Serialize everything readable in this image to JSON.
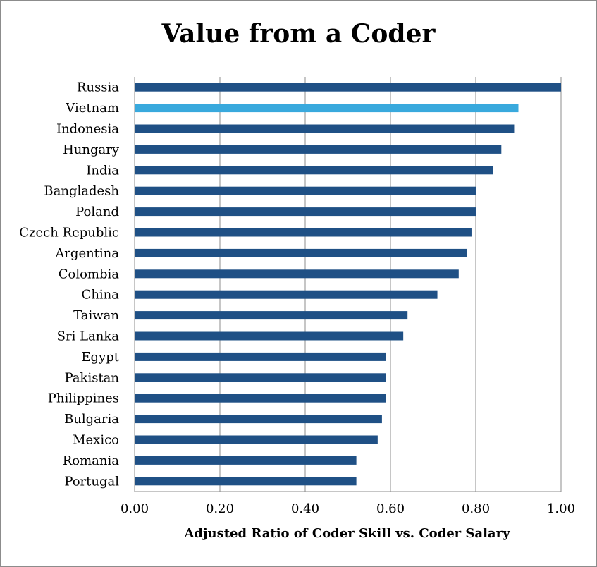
{
  "chart_data": {
    "type": "bar",
    "orientation": "horizontal",
    "title": "Value from a Coder",
    "xlabel": "Adjusted Ratio of Coder Skill vs. Coder Salary",
    "ylabel": "",
    "xlim": [
      0,
      1
    ],
    "xticks": [
      0,
      0.2,
      0.4,
      0.6,
      0.8,
      1.0
    ],
    "xtick_labels": [
      "0.00",
      "0.20",
      "0.40",
      "0.60",
      "0.80",
      "1.00"
    ],
    "grid": "vertical",
    "categories": [
      "Russia",
      "Vietnam",
      "Indonesia",
      "Hungary",
      "India",
      "Bangladesh",
      "Poland",
      "Czech Republic",
      "Argentina",
      "Colombia",
      "China",
      "Taiwan",
      "Sri Lanka",
      "Egypt",
      "Pakistan",
      "Philippines",
      "Bulgaria",
      "Mexico",
      "Romania",
      "Portugal"
    ],
    "values": [
      1.0,
      0.9,
      0.89,
      0.86,
      0.84,
      0.8,
      0.8,
      0.79,
      0.78,
      0.76,
      0.71,
      0.64,
      0.63,
      0.59,
      0.59,
      0.59,
      0.58,
      0.57,
      0.52,
      0.52
    ],
    "bar_color": "#1f5085",
    "highlight": {
      "category": "Vietnam",
      "color": "#39a9dd"
    },
    "gridline_color": "#8c8c8c"
  }
}
